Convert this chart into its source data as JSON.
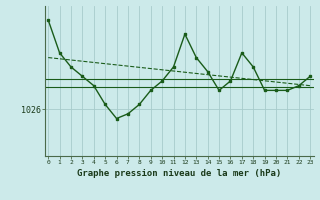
{
  "x": [
    0,
    1,
    2,
    3,
    4,
    5,
    6,
    7,
    8,
    9,
    10,
    11,
    12,
    13,
    14,
    15,
    16,
    17,
    18,
    19,
    20,
    21,
    22,
    23
  ],
  "pressure": [
    1035.5,
    1032.0,
    1030.5,
    1029.5,
    1028.5,
    1026.5,
    1025.0,
    1025.5,
    1026.5,
    1028.0,
    1029.0,
    1030.5,
    1034.0,
    1031.5,
    1030.0,
    1028.0,
    1029.0,
    1032.0,
    1030.5,
    1028.0,
    1028.0,
    1028.0,
    1028.5,
    1029.5
  ],
  "trend_x": [
    0,
    23
  ],
  "trend_y": [
    1031.5,
    1028.5
  ],
  "ref_line1": 1029.2,
  "ref_line2": 1028.4,
  "ytick_val": 1026,
  "bg_color": "#cceaea",
  "line_color": "#1a5c1a",
  "grid_color": "#a8cccc",
  "xlabel": "Graphe pression niveau de la mer (hPa)",
  "xlabel_fontsize": 6.5,
  "ylim_min": 1021,
  "ylim_max": 1037,
  "xlim_min": -0.3,
  "xlim_max": 23.3
}
